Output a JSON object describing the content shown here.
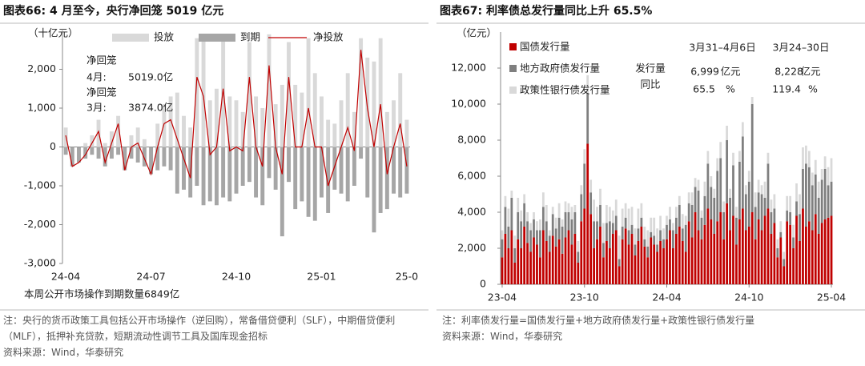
{
  "chart_data": [
    {
      "type": "bar-line",
      "title": "图表66:  4 月至今，央行净回笼 5019 亿元",
      "y_label": "（十亿元）",
      "subtitle": "本周公开市场操作到期数量6849亿",
      "categories": [
        "24-04",
        null,
        null,
        null,
        null,
        null,
        null,
        null,
        null,
        null,
        null,
        null,
        null,
        "24-07",
        null,
        null,
        null,
        null,
        null,
        null,
        null,
        null,
        null,
        null,
        null,
        null,
        "24-10",
        null,
        null,
        null,
        null,
        null,
        null,
        null,
        null,
        null,
        null,
        null,
        null,
        "25-01",
        null,
        null,
        null,
        null,
        null,
        null,
        null,
        null,
        null,
        null,
        null,
        null,
        "25-0"
      ],
      "series": [
        {
          "name": "投放",
          "type": "bar",
          "color": "#d9d9d9",
          "values": [
            500,
            0,
            0,
            100,
            300,
            700,
            100,
            400,
            800,
            0,
            300,
            500,
            200,
            0,
            600,
            1100,
            1300,
            1400,
            800,
            500,
            2800,
            2800,
            1200,
            1500,
            2800,
            1300,
            1200,
            900,
            2700,
            1300,
            1000,
            2900,
            1100,
            1600,
            2700,
            1600,
            1400,
            2800,
            1900,
            1300,
            700,
            600,
            1200,
            1900,
            900,
            2800,
            2300,
            2200,
            2800,
            900,
            1200,
            1900,
            700
          ]
        },
        {
          "name": "到期",
          "type": "bar",
          "color": "#a6a6a6",
          "values": [
            -200,
            -500,
            -400,
            -300,
            -200,
            -300,
            -500,
            -300,
            -200,
            -600,
            -300,
            -400,
            -500,
            -700,
            -600,
            -500,
            -600,
            -1200,
            -1100,
            -1300,
            -1000,
            -1500,
            -1400,
            -1500,
            -1300,
            -1400,
            -1200,
            -1000,
            -900,
            -1300,
            -1500,
            -800,
            -1100,
            -2300,
            -900,
            -1600,
            -1400,
            -1800,
            -1900,
            -1300,
            -1700,
            -1100,
            -1200,
            -1400,
            -1000,
            -300,
            -1300,
            -2200,
            -1700,
            -1600,
            -1200,
            -1300,
            -1200
          ]
        },
        {
          "name": "净投放",
          "type": "line",
          "color": "#c00000",
          "values": [
            300,
            -500,
            -400,
            -200,
            100,
            400,
            -400,
            100,
            600,
            -600,
            0,
            100,
            -300,
            -700,
            0,
            600,
            700,
            200,
            -300,
            -800,
            1800,
            1300,
            -200,
            0,
            1500,
            -100,
            0,
            -100,
            1800,
            0,
            -500,
            2100,
            0,
            -700,
            1800,
            0,
            0,
            1000,
            0,
            0,
            -1000,
            -500,
            0,
            500,
            -100,
            2500,
            1000,
            0,
            1100,
            -700,
            0,
            600,
            -500
          ]
        }
      ],
      "ylim": [
        -3000,
        3000
      ],
      "yticks": [
        {
          "value": -3000,
          "label": "-3,000"
        },
        {
          "value": -2000,
          "label": "-2,000"
        },
        {
          "value": -1000,
          "label": "-1,000"
        },
        0,
        {
          "value": 1000,
          "label": "1,000"
        },
        {
          "value": 2000,
          "label": "2,000"
        }
      ],
      "grid": false,
      "legend": "top",
      "annotations": [
        "净回笼",
        "4月:",
        "5019.0亿",
        "净回笼",
        "3月:",
        "3874.0亿"
      ],
      "notes": [
        "注：央行的货币政策工具包括公开市场操作（逆回购），常备借贷便利（SLF），中期借贷便利（MLF），抵押补充贷款，短期流动性调节工具及国库现金招标",
        "资料来源：Wind，华泰研究"
      ]
    },
    {
      "type": "stacked-bar",
      "title": "图表67:  利率债总发行量同比上升 65.5%",
      "y_label": "（亿元）",
      "categories": [
        "23-04",
        null,
        null,
        null,
        null,
        null,
        null,
        null,
        null,
        null,
        null,
        null,
        null,
        null,
        null,
        null,
        null,
        null,
        null,
        null,
        null,
        null,
        null,
        null,
        null,
        null,
        "23-10",
        null,
        null,
        null,
        null,
        null,
        null,
        null,
        null,
        null,
        null,
        null,
        null,
        null,
        null,
        null,
        null,
        null,
        null,
        null,
        null,
        null,
        null,
        null,
        null,
        null,
        "24-04",
        null,
        null,
        null,
        null,
        null,
        null,
        null,
        null,
        null,
        null,
        null,
        null,
        null,
        null,
        null,
        null,
        null,
        null,
        null,
        null,
        null,
        null,
        null,
        null,
        null,
        "24-10",
        null,
        null,
        null,
        null,
        null,
        null,
        null,
        null,
        null,
        null,
        null,
        null,
        null,
        null,
        null,
        null,
        null,
        null,
        null,
        null,
        null,
        null,
        null,
        null,
        null,
        "25-04"
      ],
      "series": [
        {
          "name": "国债发行量",
          "color": "#c00000",
          "values": [
            1500,
            2800,
            2000,
            3000,
            1200,
            2500,
            2000,
            3200,
            2300,
            1800,
            2600,
            2200,
            1500,
            3000,
            2400,
            1800,
            2700,
            2100,
            2500,
            1700,
            2600,
            3000,
            2200,
            2800,
            1200,
            3500,
            4200,
            7800,
            3900,
            2000,
            2500,
            3200,
            1500,
            2400,
            2000,
            2800,
            3000,
            1000,
            2500,
            3100,
            2200,
            2800,
            1600,
            2400,
            3200,
            2100,
            1500,
            2600,
            2200,
            1800,
            2400,
            2000,
            2500,
            3000,
            2000,
            2800,
            3200,
            2400,
            1800,
            3500,
            2600,
            4000,
            3000,
            2500,
            3300,
            4200,
            3600,
            2800,
            3500,
            4000,
            2500,
            4500,
            3000,
            3800,
            2200,
            3600,
            4200,
            3000,
            3200,
            4000,
            2500,
            3600,
            3000,
            3800,
            4200,
            2800,
            3400,
            1500,
            2600,
            1000,
            3500,
            3300,
            2000,
            3800,
            2400,
            4200,
            3200,
            3500,
            3000,
            3900,
            2800,
            3400,
            3600,
            3700,
            3800
          ]
        },
        {
          "name": "地方政府债发行量",
          "color": "#7f7f7f",
          "values": [
            1000,
            1500,
            1200,
            1800,
            800,
            1500,
            1500,
            1300,
            1200,
            1200,
            1000,
            800,
            1500,
            1300,
            1100,
            900,
            1200,
            1000,
            1200,
            1500,
            1400,
            1000,
            1400,
            1200,
            600,
            1500,
            2500,
            2800,
            1200,
            1500,
            1000,
            1200,
            800,
            1000,
            1500,
            600,
            800,
            400,
            700,
            600,
            800,
            500,
            600,
            700,
            500,
            400,
            600,
            300,
            500,
            400,
            600,
            500,
            800,
            600,
            1000,
            900,
            1200,
            700,
            1500,
            1000,
            1800,
            1400,
            2200,
            1200,
            1600,
            2500,
            1800,
            2000,
            2800,
            3000,
            1500,
            3500,
            1800,
            2800,
            1500,
            3200,
            4000,
            2000,
            2500,
            6000,
            1800,
            1500,
            2000,
            1000,
            2500,
            1200,
            800,
            500,
            300,
            400,
            600,
            700,
            600,
            800,
            1500,
            2200,
            3500,
            3000,
            2500,
            2200,
            2000,
            2400,
            2800,
            1800,
            1900
          ]
        },
        {
          "name": "政策性银行债发行量",
          "color": "#d9d9d9",
          "values": [
            500,
            600,
            1000,
            400,
            700,
            800,
            600,
            500,
            500,
            400,
            400,
            500,
            600,
            800,
            900,
            300,
            400,
            600,
            800,
            400,
            600,
            500,
            700,
            400,
            600,
            500,
            800,
            1000,
            700,
            1200,
            800,
            900,
            1100,
            1000,
            800,
            700,
            900,
            1300,
            1000,
            800,
            1200,
            1000,
            900,
            1100,
            800,
            700,
            900,
            800,
            1000,
            900,
            800,
            600,
            500,
            700,
            400,
            600,
            500,
            800,
            500,
            600,
            700,
            500,
            600,
            400,
            800,
            700,
            600,
            500,
            700,
            900,
            600,
            800,
            500,
            700,
            600,
            600,
            800,
            500,
            600,
            400,
            800,
            700,
            500,
            900,
            600,
            700,
            800,
            500,
            600,
            400,
            800,
            900,
            700,
            1000,
            1100,
            1200,
            1000,
            900,
            700,
            800,
            900,
            600,
            700,
            1000,
            1300
          ]
        }
      ],
      "ylim": [
        0,
        14000
      ],
      "yticks": [
        0,
        {
          "value": 2000,
          "label": "2,000"
        },
        {
          "value": 4000,
          "label": "4,000"
        },
        {
          "value": 6000,
          "label": "6,000"
        },
        {
          "value": 8000,
          "label": "8,000"
        },
        {
          "value": 10000,
          "label": "10,000"
        },
        {
          "value": 12000,
          "label": "12,000"
        }
      ],
      "grid": false,
      "legend": "top-left",
      "table": {
        "columns": [
          "3月31–4月6日",
          "3月24–30日"
        ],
        "rows": [
          [
            "发行量",
            "6,999",
            "亿元",
            "8,228",
            "亿元"
          ],
          [
            "同比",
            "65.5",
            "%",
            "119.4",
            "%"
          ]
        ]
      },
      "notes": [
        "注：利率债发行量=国债发行量+地方政府债发行量+政策性银行债发行量",
        "资料来源：Wind，华泰研究"
      ]
    }
  ]
}
